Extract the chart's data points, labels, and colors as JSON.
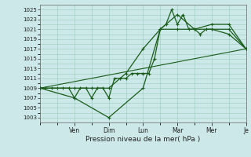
{
  "xlabel": "Pression niveau de la mer( hPa )",
  "background_color": "#cce8e8",
  "grid_color": "#99ccbb",
  "line_color": "#1a5c1a",
  "ylim": [
    1003,
    1026
  ],
  "yticks": [
    1003,
    1005,
    1007,
    1009,
    1011,
    1013,
    1015,
    1017,
    1019,
    1021,
    1023,
    1025
  ],
  "xlim": [
    0,
    36
  ],
  "xtick_positions": [
    6,
    12,
    18,
    24,
    30,
    36
  ],
  "xtick_labels": [
    "Ven",
    "Dim",
    "Lun",
    "Mar",
    "Mer",
    "Je"
  ],
  "line1_x": [
    0,
    1,
    2,
    3,
    4,
    5,
    6,
    7,
    8,
    9,
    10,
    11,
    12,
    13,
    14,
    15,
    16,
    17,
    18,
    19,
    20,
    21,
    22,
    23,
    24,
    25,
    26,
    27,
    28,
    29,
    30,
    33,
    36
  ],
  "line1_y": [
    1009,
    1009,
    1009,
    1009,
    1009,
    1009,
    1007,
    1009,
    1009,
    1007,
    1009,
    1009,
    1007,
    1011,
    1011,
    1011,
    1012,
    1012,
    1012,
    1012,
    1015,
    1021,
    1022,
    1025,
    1022,
    1024,
    1021,
    1021,
    1020,
    1021,
    1021,
    1021,
    1017
  ],
  "line2_x": [
    0,
    6,
    9,
    12,
    15,
    18,
    21,
    24,
    27,
    30,
    33,
    36
  ],
  "line2_y": [
    1009,
    1009,
    1009,
    1009,
    1012,
    1017,
    1021,
    1021,
    1021,
    1021,
    1020,
    1017
  ],
  "line3_x": [
    0,
    6,
    12,
    18,
    21,
    24,
    27,
    30,
    33,
    36
  ],
  "line3_y": [
    1009,
    1007,
    1003,
    1009,
    1021,
    1024,
    1021,
    1022,
    1022,
    1017
  ],
  "trend_x": [
    0,
    36
  ],
  "trend_y": [
    1009,
    1017
  ]
}
